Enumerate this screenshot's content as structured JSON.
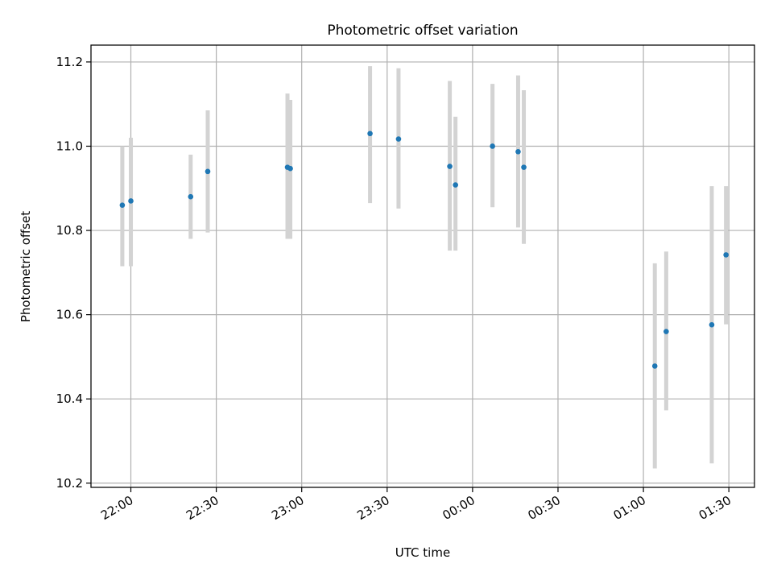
{
  "chart_data": {
    "type": "scatter",
    "title": "Photometric offset variation",
    "xlabel": "UTC time",
    "ylabel": "Photometric offset",
    "grid": true,
    "xlim": [
      "21:46",
      "01:39"
    ],
    "ylim": [
      10.19,
      11.24
    ],
    "x_ticks": [
      "22:00",
      "22:30",
      "23:00",
      "23:30",
      "00:00",
      "00:30",
      "01:00",
      "01:30"
    ],
    "y_ticks": [
      "10.2",
      "10.4",
      "10.6",
      "10.8",
      "11.0",
      "11.2"
    ],
    "series": [
      {
        "style": "points with vertical error bars",
        "points": [
          {
            "x": "21:57",
            "y": 10.86,
            "low": 10.715,
            "high": 11.0
          },
          {
            "x": "22:00",
            "y": 10.87,
            "low": 10.715,
            "high": 11.02
          },
          {
            "x": "22:21",
            "y": 10.88,
            "low": 10.78,
            "high": 10.98
          },
          {
            "x": "22:27",
            "y": 10.94,
            "low": 10.795,
            "high": 11.085
          },
          {
            "x": "22:55",
            "y": 10.95,
            "low": 10.78,
            "high": 11.125
          },
          {
            "x": "22:56",
            "y": 10.947,
            "low": 10.78,
            "high": 11.11
          },
          {
            "x": "23:24",
            "y": 11.03,
            "low": 10.865,
            "high": 11.19
          },
          {
            "x": "23:34",
            "y": 11.017,
            "low": 10.852,
            "high": 11.185
          },
          {
            "x": "23:52",
            "y": 10.952,
            "low": 10.752,
            "high": 11.155
          },
          {
            "x": "23:54",
            "y": 10.908,
            "low": 10.752,
            "high": 11.07
          },
          {
            "x": "00:07",
            "y": 11.0,
            "low": 10.855,
            "high": 11.148
          },
          {
            "x": "00:16",
            "y": 10.987,
            "low": 10.807,
            "high": 11.168
          },
          {
            "x": "00:18",
            "y": 10.95,
            "low": 10.768,
            "high": 11.133
          },
          {
            "x": "01:04",
            "y": 10.478,
            "low": 10.235,
            "high": 10.722
          },
          {
            "x": "01:08",
            "y": 10.56,
            "low": 10.373,
            "high": 10.75
          },
          {
            "x": "01:24",
            "y": 10.576,
            "low": 10.247,
            "high": 10.905
          },
          {
            "x": "01:29",
            "y": 10.742,
            "low": 10.577,
            "high": 10.905
          }
        ]
      }
    ]
  },
  "colors": {
    "point": "#1f77b4",
    "errorbar": "#d3d3d3",
    "grid": "#b0b0b0",
    "axis": "#000000"
  }
}
